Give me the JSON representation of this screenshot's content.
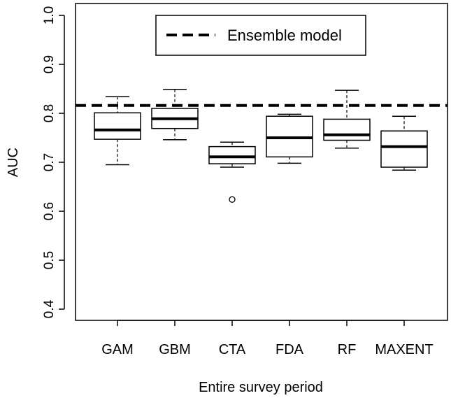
{
  "chart_data": {
    "type": "box",
    "title": "",
    "xlabel": "Entire survey period",
    "ylabel": "AUC",
    "ylim": [
      0.4,
      1.0
    ],
    "yticks": [
      0.4,
      0.5,
      0.6,
      0.7,
      0.8,
      0.9,
      1.0
    ],
    "ytick_labels": [
      "0.4",
      "0.5",
      "0.6",
      "0.7",
      "0.8",
      "0.9",
      "1.0"
    ],
    "categories": [
      "GAM",
      "GBM",
      "CTA",
      "FDA",
      "RF",
      "MAXENT"
    ],
    "boxes": [
      {
        "min": 0.695,
        "q1": 0.747,
        "median": 0.766,
        "q3": 0.801,
        "max": 0.834,
        "outliers": []
      },
      {
        "min": 0.746,
        "q1": 0.769,
        "median": 0.789,
        "q3": 0.81,
        "max": 0.849,
        "outliers": []
      },
      {
        "min": 0.69,
        "q1": 0.697,
        "median": 0.711,
        "q3": 0.732,
        "max": 0.741,
        "outliers": [
          0.624
        ]
      },
      {
        "min": 0.698,
        "q1": 0.711,
        "median": 0.75,
        "q3": 0.794,
        "max": 0.798,
        "outliers": []
      },
      {
        "min": 0.729,
        "q1": 0.745,
        "median": 0.756,
        "q3": 0.788,
        "max": 0.847,
        "outliers": []
      },
      {
        "min": 0.684,
        "q1": 0.69,
        "median": 0.732,
        "q3": 0.764,
        "max": 0.794,
        "outliers": []
      }
    ],
    "reference_line": {
      "name": "Ensemble model",
      "value": 0.816,
      "style": "dashed"
    },
    "legend": {
      "position": "top",
      "entries": [
        "Ensemble model"
      ]
    },
    "grid": false
  }
}
